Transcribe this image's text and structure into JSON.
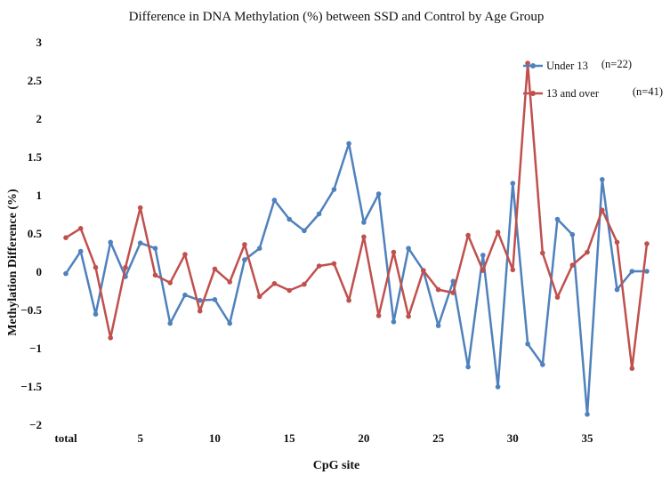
{
  "chart_data": {
    "type": "line",
    "title": "Difference in  DNA Methylation (%) between SSD and Control by Age Group",
    "xlabel": "CpG site",
    "ylabel": "Methylation Difference  (%)",
    "ylim": [
      -2,
      3
    ],
    "yticks": [
      -2,
      -1.5,
      -1,
      -0.5,
      0,
      0.5,
      1,
      1.5,
      2,
      2.5,
      3
    ],
    "ytick_labels": [
      "−2",
      "−1.5",
      "−1",
      "−0.5",
      "0",
      "0.5",
      "1",
      "1.5",
      "2",
      "2.5",
      "3"
    ],
    "x": [
      "total",
      1,
      2,
      3,
      4,
      5,
      6,
      7,
      8,
      9,
      10,
      11,
      12,
      13,
      14,
      15,
      16,
      17,
      18,
      19,
      20,
      21,
      22,
      23,
      24,
      25,
      26,
      27,
      28,
      29,
      30,
      31,
      32,
      33,
      34,
      35,
      36,
      37,
      38,
      39
    ],
    "xtick_labels": [
      {
        "pos": 0,
        "label": "total"
      },
      {
        "pos": 5,
        "label": "5"
      },
      {
        "pos": 10,
        "label": "10"
      },
      {
        "pos": 15,
        "label": "15"
      },
      {
        "pos": 20,
        "label": "20"
      },
      {
        "pos": 25,
        "label": "25"
      },
      {
        "pos": 30,
        "label": "30"
      },
      {
        "pos": 35,
        "label": "35"
      }
    ],
    "grid": false,
    "legend_position": "top-right",
    "series": [
      {
        "name": "Under 13",
        "n_label": "(n=22)",
        "color": "#4f81bd",
        "values": [
          -0.03,
          0.26,
          -0.56,
          0.38,
          -0.07,
          0.37,
          0.3,
          -0.68,
          -0.31,
          -0.38,
          -0.37,
          -0.68,
          0.15,
          0.3,
          0.93,
          0.68,
          0.53,
          0.75,
          1.07,
          1.67,
          0.64,
          1.01,
          -0.66,
          0.3,
          0.01,
          -0.71,
          -0.13,
          -1.25,
          0.21,
          -1.51,
          1.15,
          -0.95,
          -1.22,
          0.68,
          0.48,
          -1.87,
          1.2,
          -0.24,
          0.0,
          0.0
        ]
      },
      {
        "name": "13 and over",
        "n_label": "(n=41)",
        "color": "#c0504d",
        "values": [
          0.44,
          0.56,
          0.05,
          -0.87,
          0.05,
          0.83,
          -0.05,
          -0.15,
          0.22,
          -0.52,
          0.03,
          -0.14,
          0.35,
          -0.33,
          -0.16,
          -0.25,
          -0.17,
          0.07,
          0.1,
          -0.38,
          0.45,
          -0.58,
          0.25,
          -0.59,
          0.01,
          -0.24,
          -0.28,
          0.47,
          0.01,
          0.51,
          0.02,
          2.72,
          0.24,
          -0.34,
          0.08,
          0.25,
          0.8,
          0.38,
          -1.27,
          0.36
        ]
      }
    ]
  }
}
